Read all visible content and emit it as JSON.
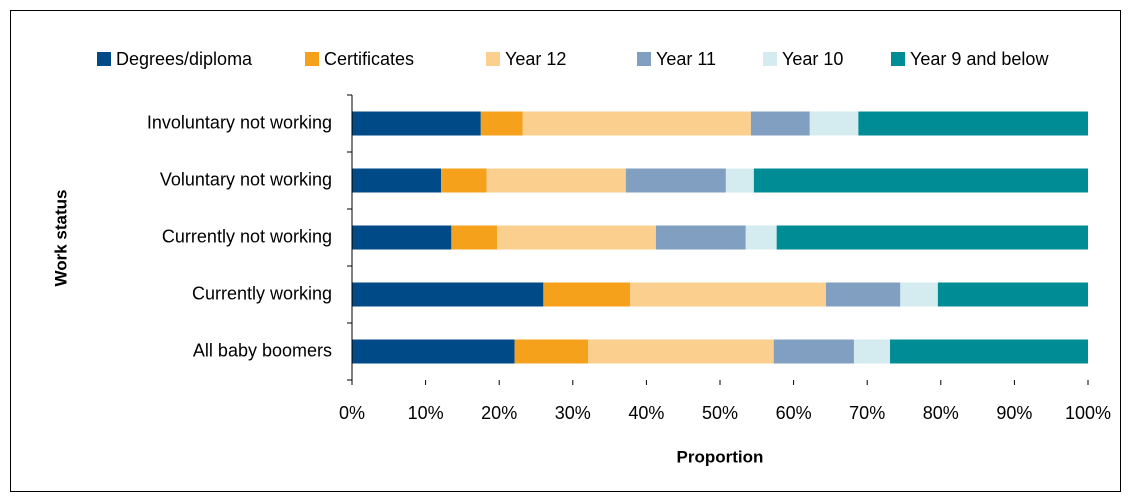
{
  "chart_data": {
    "type": "stacked_barh",
    "categories": [
      "Involuntary not working",
      "Voluntary not working",
      "Currently not working",
      "Currently working",
      "All baby boomers"
    ],
    "series": [
      {
        "name": "Degrees/diploma",
        "color": "#004a87",
        "values": [
          17.5,
          12.1,
          13.5,
          26.0,
          22.1
        ]
      },
      {
        "name": "Certificates",
        "color": "#f5a11c",
        "values": [
          5.7,
          6.2,
          6.2,
          11.8,
          10.0
        ]
      },
      {
        "name": "Year 12",
        "color": "#fbcf8e",
        "values": [
          31.0,
          18.9,
          21.6,
          26.6,
          25.2
        ]
      },
      {
        "name": "Year 11",
        "color": "#819fc1",
        "values": [
          8.0,
          13.6,
          12.2,
          10.1,
          10.9
        ]
      },
      {
        "name": "Year 10",
        "color": "#d4ebf0",
        "values": [
          6.6,
          3.8,
          4.2,
          5.1,
          4.9
        ]
      },
      {
        "name": "Year 9 and below",
        "color": "#008c95",
        "values": [
          31.2,
          45.4,
          42.3,
          20.4,
          26.9
        ]
      }
    ],
    "xlim": [
      0,
      100
    ],
    "xticks": [
      {
        "value": 0,
        "label": "0%"
      },
      {
        "value": 10,
        "label": "10%"
      },
      {
        "value": 20,
        "label": "20%"
      },
      {
        "value": 30,
        "label": "30%"
      },
      {
        "value": 40,
        "label": "40%"
      },
      {
        "value": 50,
        "label": "50%"
      },
      {
        "value": 60,
        "label": "60%"
      },
      {
        "value": 70,
        "label": "70%"
      },
      {
        "value": 80,
        "label": "80%"
      },
      {
        "value": 90,
        "label": "90%"
      },
      {
        "value": 100,
        "label": "100%"
      }
    ],
    "x_label": "Proportion",
    "y_label": "Work status",
    "legend": "top"
  }
}
